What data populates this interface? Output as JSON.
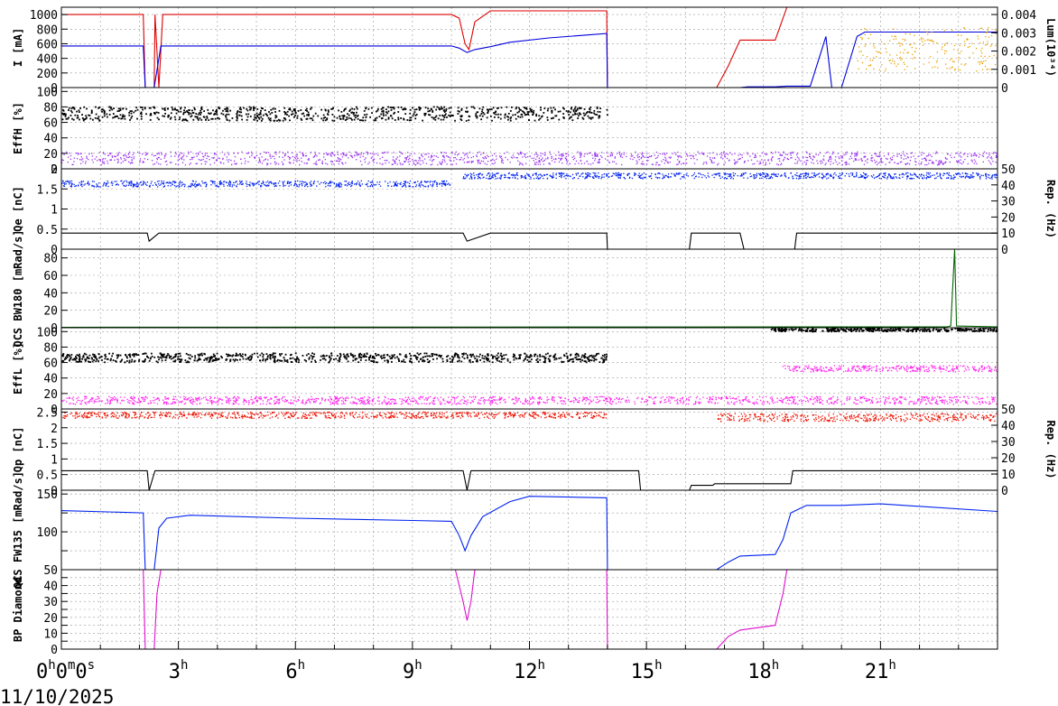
{
  "date_label": "11/10/2025",
  "chart_data": {
    "type": "line",
    "x_unit": "hours",
    "xlim": [
      0,
      24
    ],
    "x_ticks": [
      {
        "v": 0,
        "main": "0",
        "label": "0h0m0s"
      },
      {
        "v": 3,
        "main": "3",
        "label": "3h"
      },
      {
        "v": 6,
        "main": "6",
        "label": "6h"
      },
      {
        "v": 9,
        "main": "9",
        "label": "9h"
      },
      {
        "v": 12,
        "main": "12",
        "label": "12h"
      },
      {
        "v": 15,
        "main": "15",
        "label": "15h"
      },
      {
        "v": 18,
        "main": "18",
        "label": "18h"
      },
      {
        "v": 21,
        "main": "21",
        "label": "21h"
      }
    ],
    "grid": true,
    "panels": [
      {
        "id": "current",
        "ylabel": "I [mA]",
        "ylim": [
          0,
          1100
        ],
        "yticks": [
          0,
          200,
          400,
          600,
          800,
          1000
        ],
        "right_axis": {
          "label": "Lum(10³⁴)",
          "ylim": [
            0,
            0.0044
          ],
          "ticks": [
            "0",
            "0.001",
            "0.002",
            "0.003",
            "0.004"
          ],
          "tick_values": [
            0,
            0.001,
            0.002,
            0.003,
            0.004
          ]
        },
        "series": [
          {
            "color": "#dd0000",
            "kind": "line",
            "points": [
              [
                0,
                1000
              ],
              [
                2.1,
                1000
              ],
              [
                2.15,
                0
              ],
              [
                2.38,
                0
              ],
              [
                2.4,
                1000
              ],
              [
                2.5,
                0
              ],
              [
                2.6,
                1000
              ],
              [
                10,
                1000
              ],
              [
                10.2,
                950
              ],
              [
                10.35,
                600
              ],
              [
                10.45,
                520
              ],
              [
                10.6,
                900
              ],
              [
                11,
                1050
              ],
              [
                13.98,
                1050
              ],
              [
                14,
                0
              ],
              [
                16.8,
                0
              ],
              [
                17.1,
                300
              ],
              [
                17.4,
                650
              ],
              [
                18.3,
                650
              ],
              [
                18.6,
                1100
              ],
              [
                24,
                1100
              ]
            ]
          },
          {
            "color": "#0000dd",
            "kind": "line",
            "points": [
              [
                0,
                570
              ],
              [
                2.1,
                570
              ],
              [
                2.15,
                0
              ],
              [
                2.38,
                0
              ],
              [
                2.55,
                570
              ],
              [
                10,
                570
              ],
              [
                10.2,
                540
              ],
              [
                10.4,
                480
              ],
              [
                10.6,
                520
              ],
              [
                11,
                560
              ],
              [
                11.5,
                620
              ],
              [
                12.5,
                680
              ],
              [
                13.5,
                720
              ],
              [
                13.98,
                740
              ],
              [
                14,
                0
              ],
              [
                17.4,
                0
              ],
              [
                17.6,
                10
              ],
              [
                18.3,
                10
              ],
              [
                18.6,
                20
              ],
              [
                19.2,
                20
              ],
              [
                19.6,
                700
              ],
              [
                19.75,
                0
              ],
              [
                20.0,
                0
              ],
              [
                20.4,
                700
              ],
              [
                20.6,
                760
              ],
              [
                24,
                760
              ]
            ]
          },
          {
            "color": "#e8a200",
            "kind": "scatter_band",
            "range": [
              20.4,
              24
            ],
            "band": [
              0.0009,
              0.0033
            ]
          }
        ]
      },
      {
        "id": "effH",
        "ylabel": "EffH [%]",
        "ylim": [
          0,
          105
        ],
        "yticks": [
          0,
          20,
          40,
          60,
          80,
          100
        ],
        "series": [
          {
            "color": "#000000",
            "kind": "scatter_band",
            "range": [
              0,
              14
            ],
            "band": [
              62,
              80
            ]
          },
          {
            "color": "#9933ee",
            "kind": "scatter_band",
            "range": [
              0,
              24
            ],
            "band": [
              5,
              22
            ]
          }
        ]
      },
      {
        "id": "qe",
        "ylabel": "Qe [nC]",
        "ylim": [
          0,
          2
        ],
        "yticks": [
          0,
          0.5,
          1,
          1.5,
          2
        ],
        "right_axis": {
          "label": "Rep. (Hz)",
          "ylim": [
            0,
            50
          ],
          "ticks": [
            "0",
            "10",
            "20",
            "30",
            "40",
            "50"
          ],
          "tick_values": [
            0,
            10,
            20,
            30,
            40,
            50
          ]
        },
        "series": [
          {
            "color": "#0022ee",
            "kind": "scatter_band",
            "range": [
              0,
              10
            ],
            "band": [
              1.55,
              1.7
            ]
          },
          {
            "color": "#0022ee",
            "kind": "scatter_band",
            "range": [
              10.3,
              24
            ],
            "band": [
              1.75,
              1.9
            ]
          },
          {
            "color": "#000000",
            "kind": "line",
            "points": [
              [
                0,
                10
              ],
              [
                2.2,
                10
              ],
              [
                2.25,
                5
              ],
              [
                2.5,
                10
              ],
              [
                10.3,
                10
              ],
              [
                10.4,
                5
              ],
              [
                11,
                10
              ],
              [
                13.98,
                10
              ],
              [
                14,
                0
              ],
              [
                16.1,
                0
              ],
              [
                16.15,
                10
              ],
              [
                17.4,
                10
              ],
              [
                17.5,
                0
              ],
              [
                18.8,
                0
              ],
              [
                18.85,
                10
              ],
              [
                24,
                10
              ]
            ]
          }
        ]
      },
      {
        "id": "qcs_bw180",
        "ylabel": "QCS BW180 [mRad/s]",
        "ylim": [
          0,
          90
        ],
        "yticks": [
          0,
          20,
          40,
          60,
          80
        ],
        "series": [
          {
            "color": "#006600",
            "kind": "line",
            "points": [
              [
                0,
                0.5
              ],
              [
                22.7,
                1
              ],
              [
                22.8,
                2
              ],
              [
                22.9,
                90
              ],
              [
                22.95,
                2
              ],
              [
                24,
                1
              ]
            ]
          }
        ]
      },
      {
        "id": "effL",
        "ylabel": "EffL [%]",
        "ylim": [
          0,
          105
        ],
        "yticks": [
          0,
          20,
          40,
          60,
          80,
          100
        ],
        "series": [
          {
            "color": "#000000",
            "kind": "scatter_band",
            "range": [
              0,
              14
            ],
            "band": [
              60,
              72
            ]
          },
          {
            "color": "#000000",
            "kind": "scatter_band",
            "range": [
              18.2,
              24
            ],
            "band": [
              100,
              104
            ]
          },
          {
            "color": "#ff22ee",
            "kind": "scatter_band",
            "range": [
              0,
              24
            ],
            "band": [
              6,
              16
            ]
          },
          {
            "color": "#ff22ee",
            "kind": "scatter_band",
            "range": [
              18.5,
              24
            ],
            "band": [
              48,
              56
            ]
          }
        ]
      },
      {
        "id": "qp",
        "ylabel": "Qp [nC]",
        "ylim": [
          0,
          2.6
        ],
        "yticks": [
          0,
          0.5,
          1,
          1.5,
          2,
          2.5
        ],
        "right_axis": {
          "label": "Rep. (Hz)",
          "ylim": [
            0,
            50
          ],
          "ticks": [
            "0",
            "10",
            "20",
            "30",
            "40",
            "50"
          ],
          "tick_values": [
            0,
            10,
            20,
            30,
            40,
            50
          ]
        },
        "series": [
          {
            "color": "#ee1100",
            "kind": "scatter_band",
            "range": [
              0,
              14
            ],
            "band": [
              2.3,
              2.5
            ]
          },
          {
            "color": "#ee1100",
            "kind": "scatter_band",
            "range": [
              16.8,
              24
            ],
            "band": [
              2.2,
              2.45
            ]
          },
          {
            "color": "#000000",
            "kind": "line",
            "points": [
              [
                0,
                12
              ],
              [
                2.2,
                12
              ],
              [
                2.25,
                0
              ],
              [
                2.4,
                12
              ],
              [
                10.3,
                12
              ],
              [
                10.4,
                0
              ],
              [
                10.5,
                12
              ],
              [
                14.8,
                12
              ],
              [
                14.85,
                0
              ],
              [
                16.1,
                0
              ],
              [
                16.15,
                3
              ],
              [
                16.7,
                3
              ],
              [
                16.75,
                4
              ],
              [
                18.7,
                4
              ],
              [
                18.75,
                12
              ],
              [
                24,
                12
              ]
            ]
          }
        ]
      },
      {
        "id": "qcs_fw135",
        "ylabel": "QCS FW135 [mRad/s]",
        "ylim": [
          50,
          155
        ],
        "yticks": [
          50,
          100,
          150
        ],
        "y_tick_values": [
          50,
          75,
          100,
          125,
          150
        ],
        "series": [
          {
            "color": "#0022ee",
            "kind": "line",
            "points": [
              [
                0,
                128
              ],
              [
                2.1,
                125
              ],
              [
                2.15,
                50
              ],
              [
                2.38,
                50
              ],
              [
                2.5,
                105
              ],
              [
                2.7,
                118
              ],
              [
                3.3,
                122
              ],
              [
                6,
                118
              ],
              [
                9,
                115
              ],
              [
                10,
                114
              ],
              [
                10.2,
                95
              ],
              [
                10.35,
                75
              ],
              [
                10.5,
                95
              ],
              [
                10.8,
                120
              ],
              [
                11.5,
                140
              ],
              [
                12,
                147
              ],
              [
                13.98,
                145
              ],
              [
                14,
                50
              ],
              [
                16.8,
                50
              ],
              [
                17.1,
                60
              ],
              [
                17.4,
                68
              ],
              [
                18.3,
                70
              ],
              [
                18.5,
                90
              ],
              [
                18.7,
                125
              ],
              [
                19.1,
                135
              ],
              [
                20,
                135
              ],
              [
                21,
                137
              ],
              [
                24,
                127
              ]
            ]
          }
        ]
      },
      {
        "id": "bp",
        "ylabel": "BP Diamond",
        "ylim": [
          0,
          50
        ],
        "yticks": [
          0,
          10,
          20,
          30,
          40
        ],
        "y_tick_values": [
          0,
          5,
          10,
          15,
          20,
          25,
          30,
          35,
          40,
          45
        ],
        "series": [
          {
            "color": "#dd11cc",
            "kind": "line",
            "points": [
              [
                0,
                50
              ],
              [
                2.1,
                50
              ],
              [
                2.15,
                0
              ],
              [
                2.38,
                0
              ],
              [
                2.45,
                35
              ],
              [
                2.55,
                50
              ],
              [
                10.1,
                50
              ],
              [
                10.3,
                30
              ],
              [
                10.4,
                18
              ],
              [
                10.5,
                30
              ],
              [
                10.6,
                50
              ],
              [
                13.98,
                50
              ],
              [
                14,
                0
              ],
              [
                16.8,
                0
              ],
              [
                17.1,
                8
              ],
              [
                17.4,
                12
              ],
              [
                18.3,
                15
              ],
              [
                18.5,
                35
              ],
              [
                18.6,
                50
              ],
              [
                24,
                50
              ]
            ]
          }
        ]
      }
    ]
  }
}
